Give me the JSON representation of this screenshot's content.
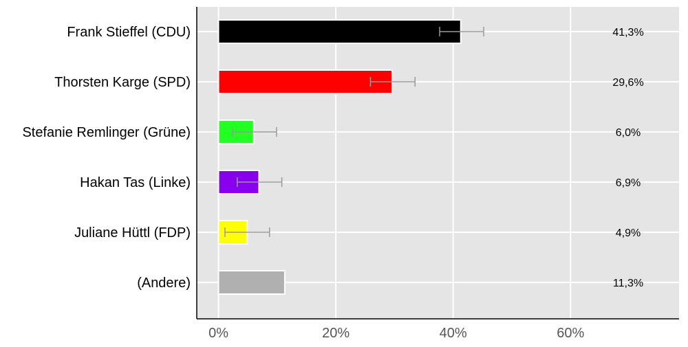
{
  "chart_data": {
    "type": "bar",
    "orientation": "horizontal",
    "categories": [
      "Frank Stieffel (CDU)",
      "Thorsten Karge (SPD)",
      "Stefanie Remlinger (Grüne)",
      "Hakan Tas (Linke)",
      "Juliane Hüttl (FDP)",
      "(Andere)"
    ],
    "values": [
      41.3,
      29.6,
      6.0,
      6.9,
      4.9,
      11.3
    ],
    "value_labels": [
      "41,3%",
      "29,6%",
      "6,0%",
      "6,9%",
      "4,9%",
      "11,3%"
    ],
    "error_bars": [
      [
        37.7,
        45.2
      ],
      [
        25.9,
        33.5
      ],
      [
        2.4,
        9.9
      ],
      [
        3.2,
        10.8
      ],
      [
        1.1,
        8.7
      ],
      null
    ],
    "colors": [
      "#000000",
      "#ff0000",
      "#22ff22",
      "#8800ee",
      "#ffff00",
      "#b0b0b0"
    ],
    "error_bar_color": "#999999",
    "xlim": [
      -3.7,
      78.5
    ],
    "xticks": [
      0,
      20,
      40,
      60
    ],
    "xtick_labels": [
      "0%",
      "20%",
      "40%",
      "60%"
    ],
    "grid": true,
    "background": "#e5e5e5",
    "title": "",
    "xlabel": "",
    "ylabel": ""
  }
}
